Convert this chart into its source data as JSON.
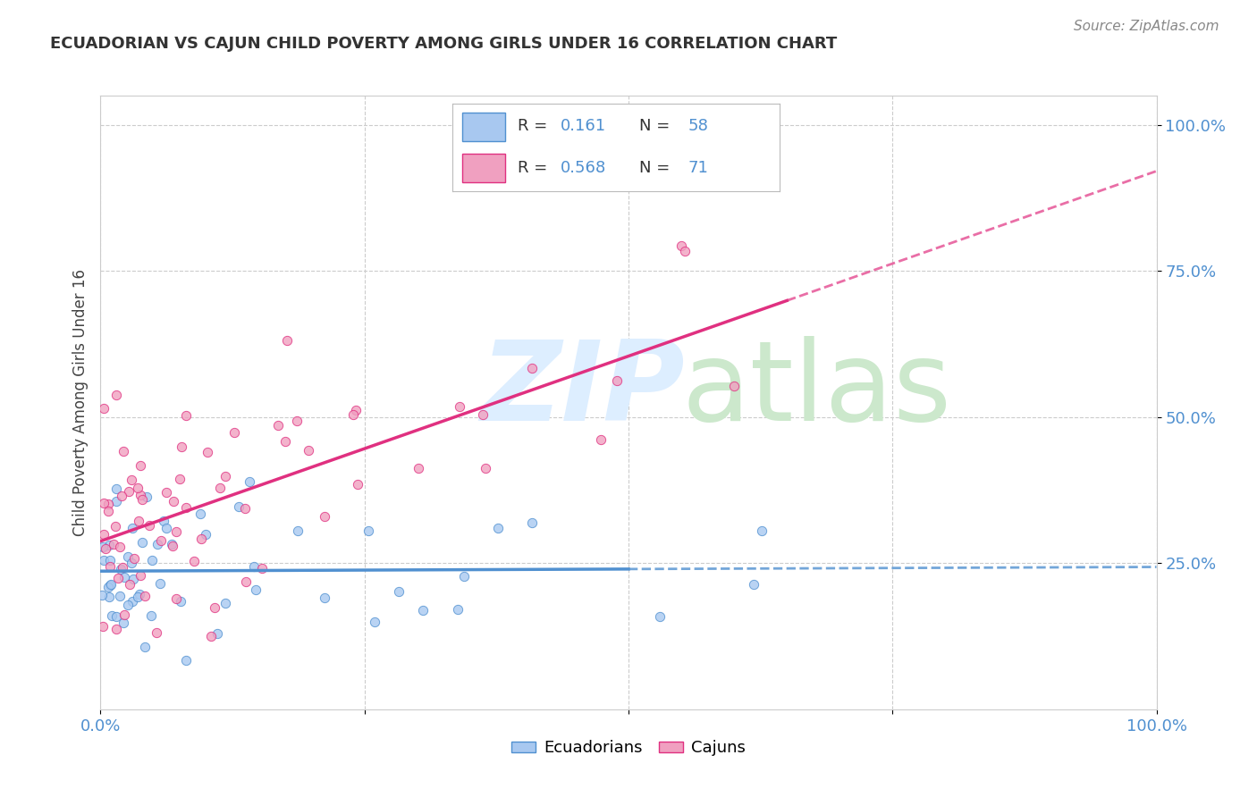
{
  "title": "ECUADORIAN VS CAJUN CHILD POVERTY AMONG GIRLS UNDER 16 CORRELATION CHART",
  "source": "Source: ZipAtlas.com",
  "ylabel": "Child Poverty Among Girls Under 16",
  "blue_color": "#a8c8f0",
  "pink_color": "#f0a0c0",
  "blue_line_color": "#5090d0",
  "pink_line_color": "#e03080",
  "background_color": "#ffffff",
  "grid_color": "#cccccc",
  "tick_color": "#5090d0",
  "title_color": "#333333",
  "source_color": "#888888",
  "watermark_zip_color": "#ddeeff",
  "watermark_atlas_color": "#cce8cc",
  "ytick_vals": [
    0.25,
    0.5,
    0.75,
    1.0
  ],
  "ytick_labels": [
    "25.0%",
    "50.0%",
    "75.0%",
    "100.0%"
  ],
  "xtick_vals": [
    0.0,
    1.0
  ],
  "xtick_labels": [
    "0.0%",
    "100.0%"
  ],
  "xlim": [
    0.0,
    1.0
  ],
  "ylim": [
    0.0,
    1.05
  ],
  "n_ecuadorian": 58,
  "n_cajun": 71,
  "r_ecuadorian": 0.161,
  "r_cajun": 0.568,
  "ecu_seed": 42,
  "caj_seed": 77
}
